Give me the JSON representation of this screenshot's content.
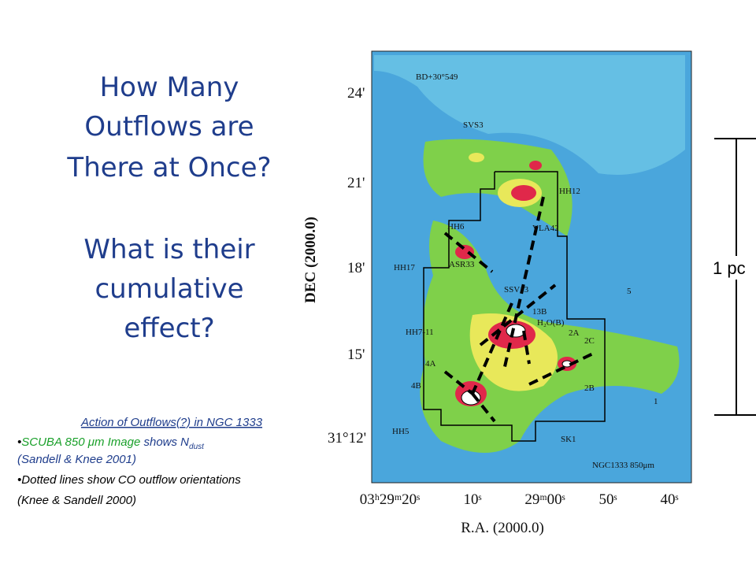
{
  "title": {
    "question1": [
      "How Many",
      "Outflows are",
      "There at Once?"
    ],
    "question2": [
      "What is their",
      "cumulative",
      "effect?"
    ]
  },
  "caption": {
    "heading": "Action of Outflows(?) in NGC 1333",
    "bullet1": {
      "highlight": "SCUBA 850 μm Image",
      "text": " shows N",
      "subscript": "dust",
      "citation": "(Sandell & Knee 2001)"
    },
    "bullet2": {
      "highlight": "Dotted lines",
      "text": " show CO outflow orientations",
      "citation": " (Knee & Sandell 2000)"
    }
  },
  "image": {
    "dec_axis_label": "DEC (2000.0)",
    "ra_axis_label": "R.A. (2000.0)",
    "dec_ticks": [
      "24'",
      "21'",
      "18'",
      "15'",
      "31°12'"
    ],
    "ra_ticks": [
      "03ʰ29ᵐ20ˢ",
      "10ˢ",
      "29ᵐ00ˢ",
      "50ˢ",
      "40ˢ"
    ],
    "labels": [
      "BD+30°549",
      "SVS3",
      "HH12",
      "HH6",
      "VLA42",
      "HH17",
      "ASR33",
      "SSV13",
      "13B",
      "H₂O(B)",
      "HH7-11",
      "2A",
      "2C",
      "4A",
      "4B",
      "2B",
      "HH5",
      "SK1",
      "1",
      "5",
      "NGC1333 850μm"
    ],
    "scale_label": "1 pc"
  }
}
